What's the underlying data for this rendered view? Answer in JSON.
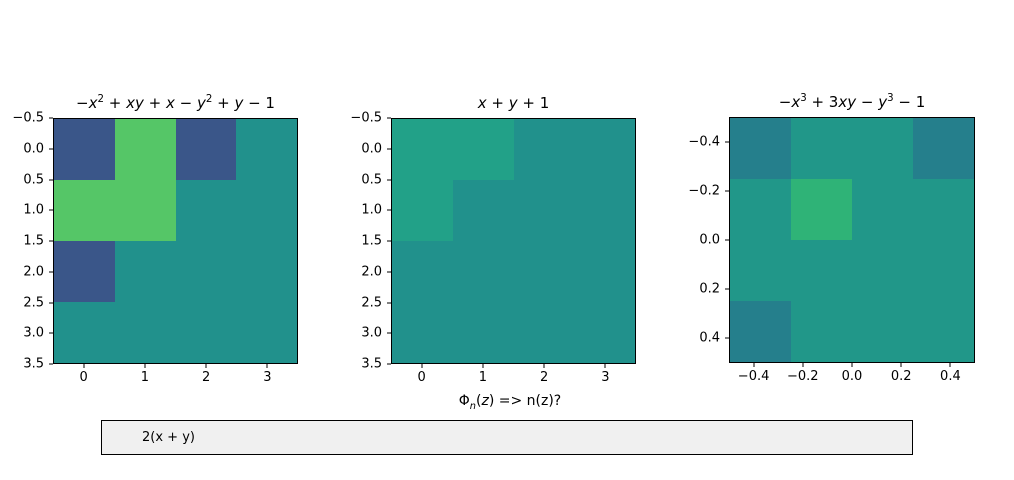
{
  "chart_data": [
    {
      "type": "heatmap",
      "title": "-x^2 + xy + x - y^2 + y - 1",
      "title_tokens": [
        {
          "t": "−"
        },
        {
          "t": "x",
          "i": 1
        },
        {
          "t": "2",
          "sup": 1
        },
        {
          "t": " + "
        },
        {
          "t": "xy",
          "i": 1
        },
        {
          "t": " + "
        },
        {
          "t": "x",
          "i": 1
        },
        {
          "t": " − "
        },
        {
          "t": "y",
          "i": 1
        },
        {
          "t": "2",
          "sup": 1
        },
        {
          "t": " + "
        },
        {
          "t": "y",
          "i": 1
        },
        {
          "t": " − 1"
        }
      ],
      "shape": [
        4,
        4
      ],
      "xlim": [
        -0.5,
        3.5
      ],
      "ylim_top_to_bottom": [
        -0.5,
        3.5
      ],
      "xticks": [
        {
          "label": "0",
          "f": 0.125
        },
        {
          "label": "1",
          "f": 0.375
        },
        {
          "label": "2",
          "f": 0.625
        },
        {
          "label": "3",
          "f": 0.875
        }
      ],
      "yticks": [
        {
          "label": "−0.5",
          "f": 0
        },
        {
          "label": "0.0",
          "f": 0.125
        },
        {
          "label": "0.5",
          "f": 0.25
        },
        {
          "label": "1.0",
          "f": 0.375
        },
        {
          "label": "1.5",
          "f": 0.5
        },
        {
          "label": "2.0",
          "f": 0.625
        },
        {
          "label": "2.5",
          "f": 0.75
        },
        {
          "label": "3.0",
          "f": 0.875
        },
        {
          "label": "3.5",
          "f": 1
        }
      ],
      "cell_colors": [
        [
          "#3a5689",
          "#55c667",
          "#3a5689",
          "#21918c"
        ],
        [
          "#55c667",
          "#55c667",
          "#21918c",
          "#21918c"
        ],
        [
          "#3a5689",
          "#21918c",
          "#21918c",
          "#21918c"
        ],
        [
          "#21918c",
          "#21918c",
          "#21918c",
          "#21918c"
        ]
      ]
    },
    {
      "type": "heatmap",
      "title": "x + y + 1",
      "title_tokens": [
        {
          "t": "x",
          "i": 1
        },
        {
          "t": " + "
        },
        {
          "t": "y",
          "i": 1
        },
        {
          "t": " + 1"
        }
      ],
      "shape": [
        4,
        4
      ],
      "xlim": [
        -0.5,
        3.5
      ],
      "ylim_top_to_bottom": [
        -0.5,
        3.5
      ],
      "xticks": [
        {
          "label": "0",
          "f": 0.125
        },
        {
          "label": "1",
          "f": 0.375
        },
        {
          "label": "2",
          "f": 0.625
        },
        {
          "label": "3",
          "f": 0.875
        }
      ],
      "yticks": [
        {
          "label": "−0.5",
          "f": 0
        },
        {
          "label": "0.0",
          "f": 0.125
        },
        {
          "label": "0.5",
          "f": 0.25
        },
        {
          "label": "1.0",
          "f": 0.375
        },
        {
          "label": "1.5",
          "f": 0.5
        },
        {
          "label": "2.0",
          "f": 0.625
        },
        {
          "label": "2.5",
          "f": 0.75
        },
        {
          "label": "3.0",
          "f": 0.875
        },
        {
          "label": "3.5",
          "f": 1
        }
      ],
      "cell_colors": [
        [
          "#22a188",
          "#22a188",
          "#21918c",
          "#21918c"
        ],
        [
          "#22a188",
          "#21918c",
          "#21918c",
          "#21918c"
        ],
        [
          "#21918c",
          "#21918c",
          "#21918c",
          "#21918c"
        ],
        [
          "#21918c",
          "#21918c",
          "#21918c",
          "#21918c"
        ]
      ]
    },
    {
      "type": "heatmap",
      "title": "-x^3 + 3xy - y^3 - 1",
      "title_tokens": [
        {
          "t": "−"
        },
        {
          "t": "x",
          "i": 1
        },
        {
          "t": "3",
          "sup": 1
        },
        {
          "t": " + 3"
        },
        {
          "t": "xy",
          "i": 1
        },
        {
          "t": " − "
        },
        {
          "t": "y",
          "i": 1
        },
        {
          "t": "3",
          "sup": 1
        },
        {
          "t": " − 1"
        }
      ],
      "shape": [
        4,
        4
      ],
      "xlim": [
        -0.5,
        0.5
      ],
      "ylim_top_to_bottom": [
        -0.5,
        0.5
      ],
      "xticks": [
        {
          "label": "−0.4",
          "f": 0.1
        },
        {
          "label": "−0.2",
          "f": 0.3
        },
        {
          "label": "0.0",
          "f": 0.5
        },
        {
          "label": "0.2",
          "f": 0.7
        },
        {
          "label": "0.4",
          "f": 0.9
        }
      ],
      "yticks": [
        {
          "label": "−0.4",
          "f": 0.1
        },
        {
          "label": "−0.2",
          "f": 0.3
        },
        {
          "label": "0.0",
          "f": 0.5
        },
        {
          "label": "0.2",
          "f": 0.7
        },
        {
          "label": "0.4",
          "f": 0.9
        }
      ],
      "cell_colors": [
        [
          "#257f8c",
          "#219789",
          "#219789",
          "#257f8c"
        ],
        [
          "#219789",
          "#2fb377",
          "#219789",
          "#219789"
        ],
        [
          "#219789",
          "#219789",
          "#219789",
          "#219789"
        ],
        [
          "#257f8c",
          "#219789",
          "#219789",
          "#219789"
        ]
      ]
    }
  ],
  "question": {
    "text": "Φn(z) => n(z)?",
    "tokens": [
      {
        "t": "Φ"
      },
      {
        "t": "n",
        "i": 1,
        "sub": 1
      },
      {
        "t": "("
      },
      {
        "t": "z",
        "i": 1
      },
      {
        "t": ") => n(z)?"
      }
    ]
  },
  "answer": {
    "value": "2(x + y)",
    "box_bg": "#f0f0f0"
  },
  "palette": {
    "dark_blue": "#3a5689",
    "teal": "#21918c",
    "light_teal": "#22a188",
    "dark_teal": "#257f8c",
    "green": "#55c667",
    "mid_green": "#2fb377"
  }
}
